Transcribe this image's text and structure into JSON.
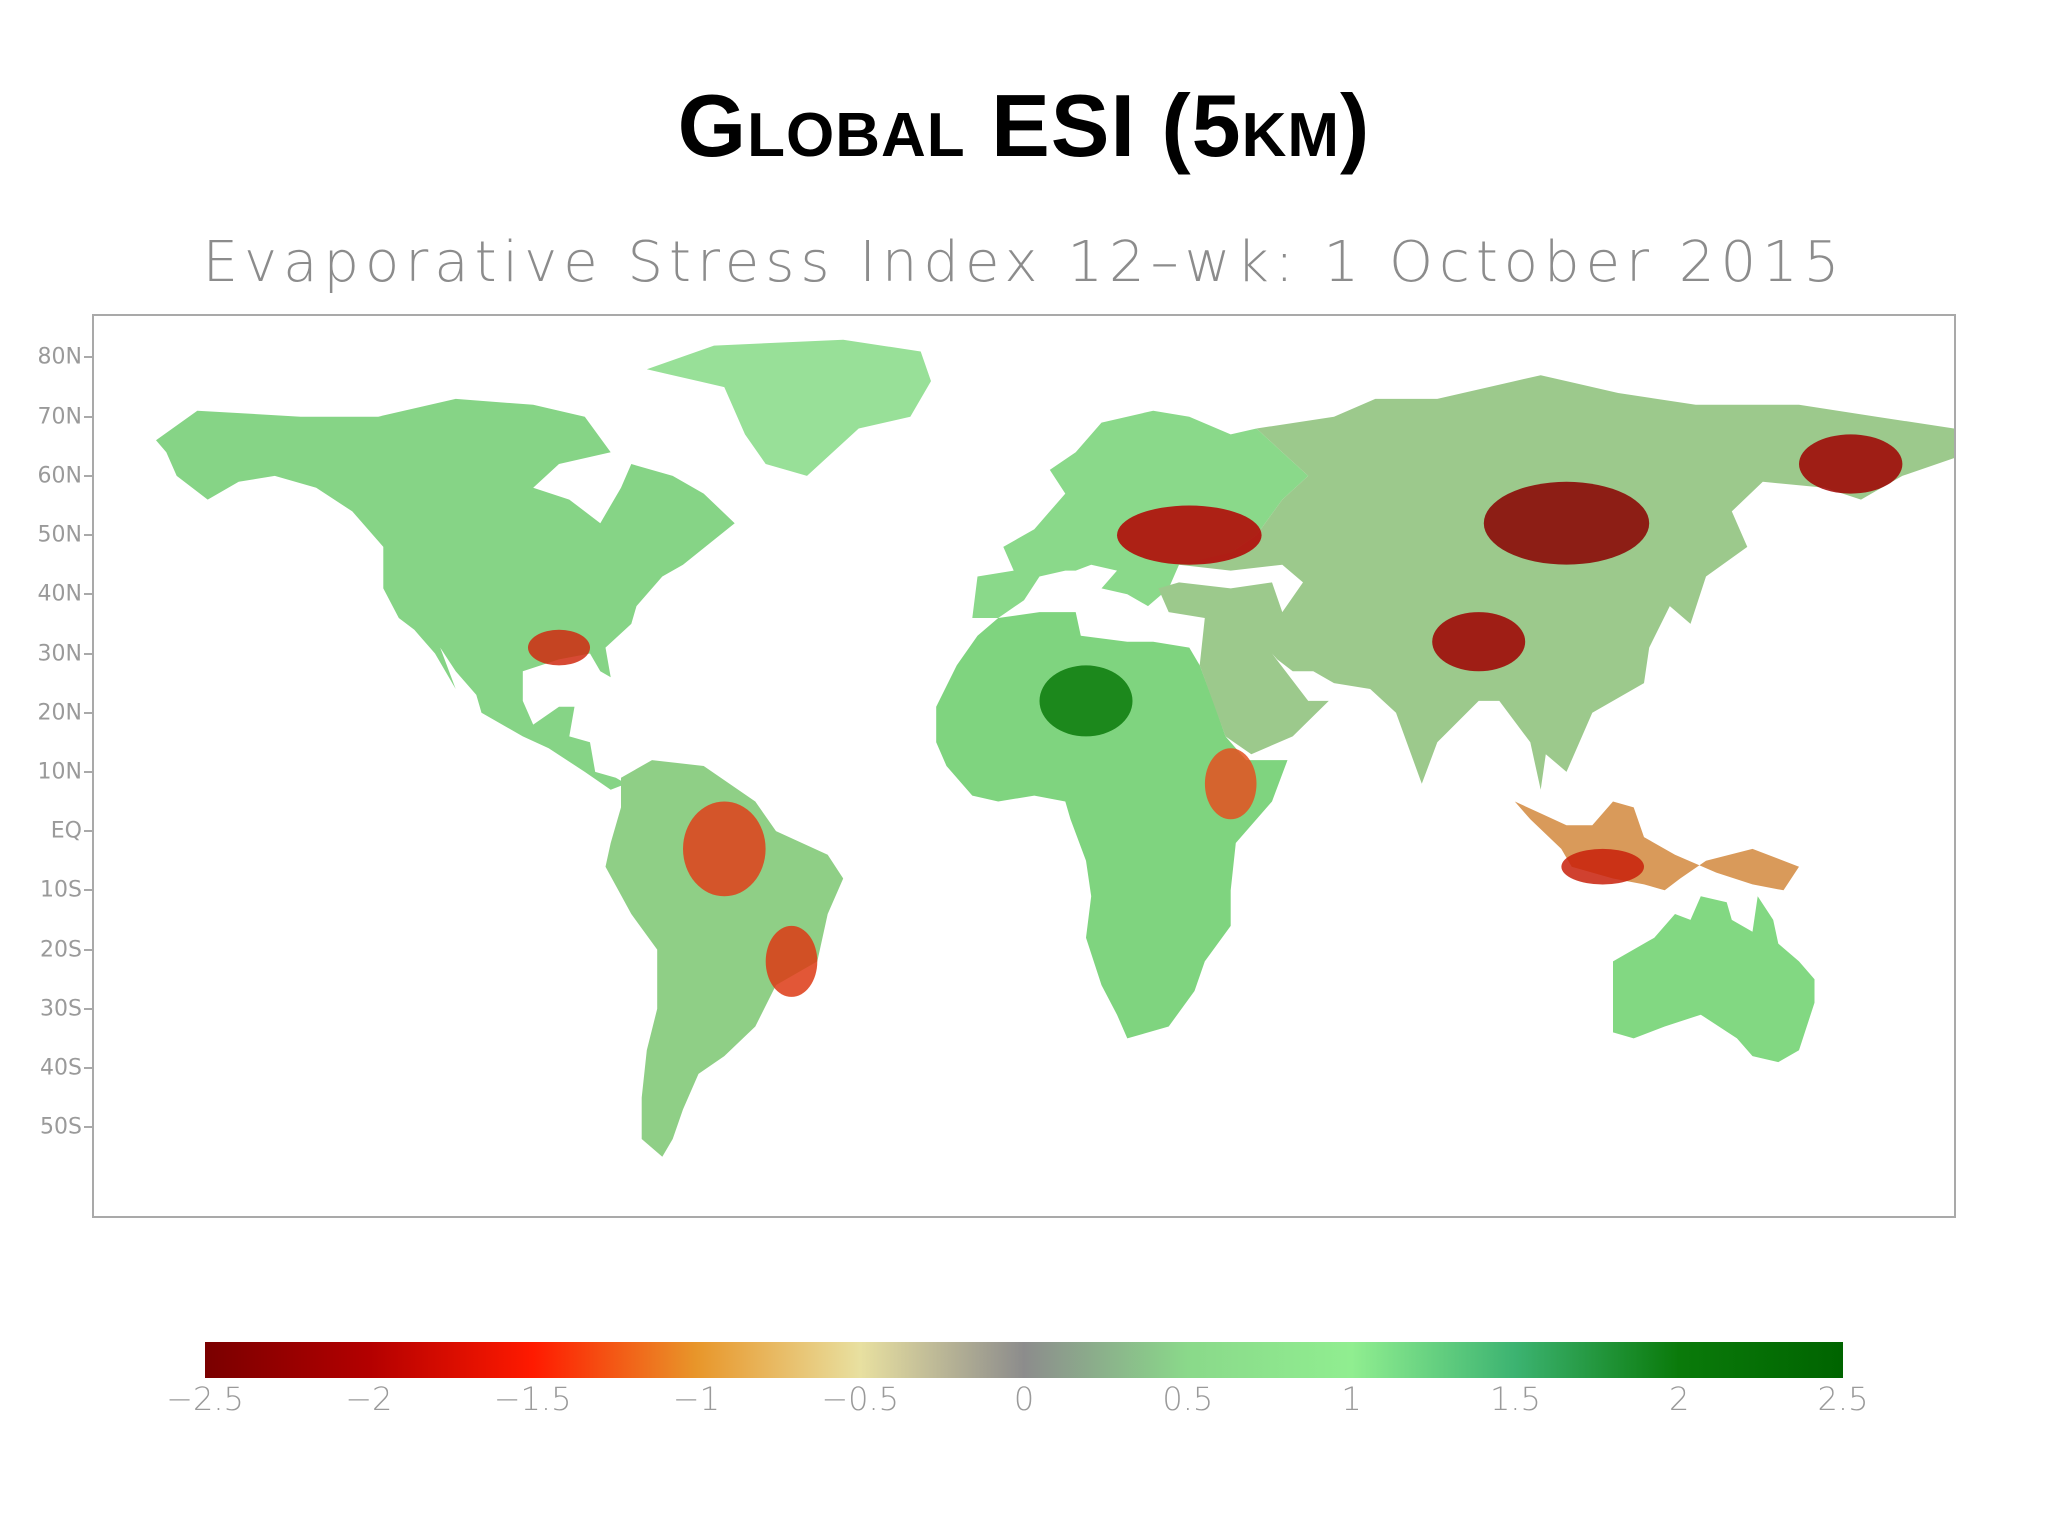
{
  "slide": {
    "title": "Global ESI (5km)"
  },
  "map": {
    "title": "Evaporative Stress Index 12–wk: 1 October 2015",
    "lat_axis": {
      "labels": [
        "80N",
        "70N",
        "60N",
        "50N",
        "40N",
        "30N",
        "20N",
        "10N",
        "EQ",
        "10S",
        "20S",
        "30S",
        "40S",
        "50S"
      ],
      "values": [
        80,
        70,
        60,
        50,
        40,
        30,
        20,
        10,
        0,
        -10,
        -20,
        -30,
        -40,
        -50
      ],
      "range": [
        -65,
        87
      ]
    },
    "lon_range": [
      -180,
      180
    ],
    "background_color": "#ffffff",
    "frame_color": "#a9a9a9"
  },
  "colorbar": {
    "labels": [
      "−2.5",
      "−2",
      "−1.5",
      "−1",
      "−0.5",
      "0",
      "0.5",
      "1",
      "1.5",
      "2",
      "2.5"
    ],
    "values": [
      -2.5,
      -2,
      -1.5,
      -1,
      -0.5,
      0,
      0.5,
      1,
      1.5,
      2,
      2.5
    ],
    "range": [
      -2.5,
      2.5
    ],
    "stops": [
      {
        "value": -2.5,
        "color": "#7a0000"
      },
      {
        "value": -2.0,
        "color": "#b30000"
      },
      {
        "value": -1.5,
        "color": "#ff1a00"
      },
      {
        "value": -1.0,
        "color": "#e8962a"
      },
      {
        "value": -0.5,
        "color": "#e8e0a0"
      },
      {
        "value": 0.0,
        "color": "#8c8c8c"
      },
      {
        "value": 0.5,
        "color": "#8ad98a"
      },
      {
        "value": 1.0,
        "color": "#90ee90"
      },
      {
        "value": 1.5,
        "color": "#3cb371"
      },
      {
        "value": 2.0,
        "color": "#0a7a0a"
      },
      {
        "value": 2.5,
        "color": "#006400"
      }
    ]
  },
  "regions": [
    {
      "name": "North America",
      "esi": 0.7,
      "color": "#86d486"
    },
    {
      "name": "Greenland",
      "esi": 0.8,
      "color": "#98e098"
    },
    {
      "name": "South America",
      "esi": 0.4,
      "color": "#8fcf86"
    },
    {
      "name": "Europe",
      "esi": 0.6,
      "color": "#8ad98a"
    },
    {
      "name": "Africa",
      "esi": 0.8,
      "color": "#7fd47f"
    },
    {
      "name": "Asia",
      "esi": 0.3,
      "color": "#9cc98c"
    },
    {
      "name": "Australia",
      "esi": 0.9,
      "color": "#82d882"
    },
    {
      "name": "Southeast Asia",
      "esi": -0.6,
      "color": "#d99a5a"
    }
  ],
  "hotspots": [
    {
      "name": "Eastern Europe / Ukraine",
      "esi": -2.2,
      "color": "#b30000"
    },
    {
      "name": "Mongolia / Southern Siberia",
      "esi": -2.4,
      "color": "#8b0000"
    },
    {
      "name": "Tibetan Plateau",
      "esi": -2.3,
      "color": "#a00000"
    },
    {
      "name": "Amazon Basin",
      "esi": -1.5,
      "color": "#e0401a"
    },
    {
      "name": "Eastern Brazil",
      "esi": -1.6,
      "color": "#dd3a14"
    },
    {
      "name": "Horn of Africa",
      "esi": -1.4,
      "color": "#e45020"
    },
    {
      "name": "Gulf Coast",
      "esi": -1.7,
      "color": "#d02a10"
    },
    {
      "name": "Sahel",
      "esi": 2.2,
      "color": "#0a7a0a"
    },
    {
      "name": "Far East Russia",
      "esi": -2.2,
      "color": "#a00000"
    },
    {
      "name": "Indonesia",
      "esi": -1.8,
      "color": "#c8200a"
    }
  ]
}
